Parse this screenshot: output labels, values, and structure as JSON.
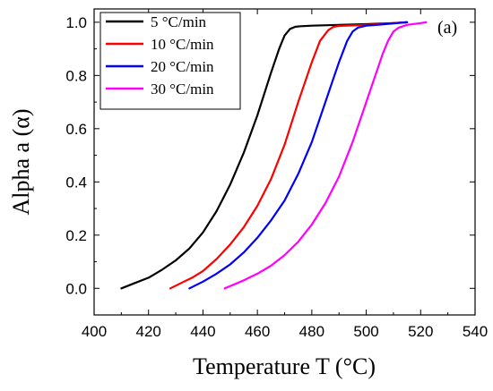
{
  "chart_data": {
    "type": "line",
    "panel_label": "(a)",
    "xlabel": "Temperature T (°C)",
    "ylabel": "Alpha a (α)",
    "xlim": [
      400,
      540
    ],
    "ylim": [
      -0.1,
      1.05
    ],
    "x_ticks": [
      400,
      420,
      440,
      460,
      480,
      500,
      520,
      540
    ],
    "y_ticks": [
      0.0,
      0.2,
      0.4,
      0.6,
      0.8,
      1.0
    ],
    "x_tick_labels": [
      "400",
      "420",
      "440",
      "460",
      "480",
      "500",
      "520",
      "540"
    ],
    "y_tick_labels": [
      "0.0",
      "0.2",
      "0.4",
      "0.6",
      "0.8",
      "1.0"
    ],
    "grid": false,
    "legend_position": "top-left",
    "series": [
      {
        "name": "5 °C/min",
        "color": "#000000",
        "x": [
          410,
          415,
          420,
          425,
          430,
          435,
          440,
          445,
          450,
          455,
          460,
          465,
          468,
          470,
          472,
          474,
          476,
          480,
          490,
          500,
          510,
          515
        ],
        "y": [
          0.0,
          0.02,
          0.04,
          0.07,
          0.105,
          0.15,
          0.21,
          0.29,
          0.39,
          0.51,
          0.65,
          0.81,
          0.9,
          0.95,
          0.975,
          0.983,
          0.985,
          0.987,
          0.99,
          0.993,
          0.997,
          1.0
        ]
      },
      {
        "name": "10 °C/min",
        "color": "#ff0000",
        "x": [
          428,
          432,
          436,
          440,
          445,
          450,
          455,
          460,
          465,
          470,
          475,
          478,
          480,
          483,
          486,
          488,
          490,
          495,
          500,
          505,
          510,
          515
        ],
        "y": [
          0.0,
          0.02,
          0.04,
          0.065,
          0.11,
          0.165,
          0.23,
          0.31,
          0.41,
          0.54,
          0.7,
          0.79,
          0.85,
          0.93,
          0.97,
          0.983,
          0.986,
          0.988,
          0.99,
          0.993,
          0.997,
          1.0
        ]
      },
      {
        "name": "20 °C/min",
        "color": "#0000ff",
        "x": [
          435,
          440,
          445,
          450,
          455,
          460,
          465,
          470,
          475,
          480,
          485,
          488,
          490,
          493,
          495,
          497,
          500,
          505,
          510,
          515
        ],
        "y": [
          0.0,
          0.025,
          0.055,
          0.09,
          0.135,
          0.19,
          0.255,
          0.33,
          0.43,
          0.55,
          0.7,
          0.79,
          0.85,
          0.93,
          0.965,
          0.98,
          0.987,
          0.991,
          0.996,
          1.0
        ]
      },
      {
        "name": "30 °C/min",
        "color": "#ff00ff",
        "x": [
          448,
          455,
          460,
          465,
          470,
          475,
          480,
          485,
          490,
          495,
          500,
          503,
          506,
          508,
          510,
          512,
          515,
          520,
          522
        ],
        "y": [
          0.0,
          0.03,
          0.055,
          0.085,
          0.125,
          0.175,
          0.24,
          0.32,
          0.42,
          0.55,
          0.7,
          0.79,
          0.88,
          0.93,
          0.965,
          0.98,
          0.99,
          0.997,
          1.0
        ]
      }
    ]
  }
}
